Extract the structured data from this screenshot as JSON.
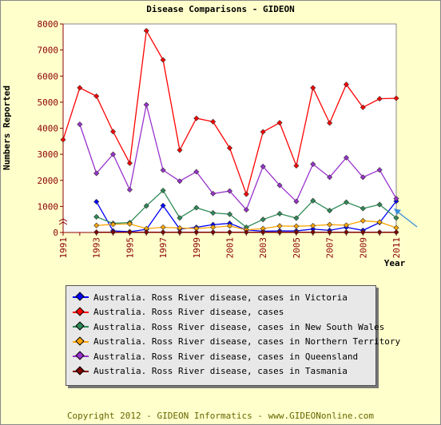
{
  "chart_data": {
    "type": "line",
    "title": "Disease Comparisons - GIDEON",
    "xlabel": "Year",
    "ylabel": "Numbers Reported",
    "xlim": [
      1991,
      2011
    ],
    "ylim": [
      0,
      8000
    ],
    "x_ticks": [
      1991,
      1993,
      1995,
      1997,
      1999,
      2001,
      2003,
      2005,
      2007,
      2009,
      2011
    ],
    "y_ticks": [
      0,
      1000,
      2000,
      3000,
      4000,
      5000,
      6000,
      7000,
      8000
    ],
    "grid": false,
    "legend_position": "bottom",
    "series": [
      {
        "name": "Australia. Ross River disease, cases in Victoria",
        "color": "#0000ff",
        "points": [
          [
            1993,
            1180
          ],
          [
            1994,
            60
          ],
          [
            1995,
            30
          ],
          [
            1996,
            120
          ],
          [
            1997,
            1030
          ],
          [
            1998,
            130
          ],
          [
            1999,
            200
          ],
          [
            2000,
            300
          ],
          [
            2001,
            350
          ],
          [
            2002,
            100
          ],
          [
            2003,
            50
          ],
          [
            2004,
            60
          ],
          [
            2005,
            60
          ],
          [
            2006,
            130
          ],
          [
            2007,
            80
          ],
          [
            2008,
            200
          ],
          [
            2009,
            80
          ],
          [
            2010,
            380
          ],
          [
            2011,
            1200
          ]
        ]
      },
      {
        "name": "Australia. Ross River disease, cases",
        "color": "#ff0000",
        "points": [
          [
            1991,
            3560
          ],
          [
            1992,
            5550
          ],
          [
            1993,
            5230
          ],
          [
            1994,
            3870
          ],
          [
            1995,
            2660
          ],
          [
            1996,
            7740
          ],
          [
            1997,
            6620
          ],
          [
            1998,
            3160
          ],
          [
            1999,
            4380
          ],
          [
            2000,
            4250
          ],
          [
            2001,
            3240
          ],
          [
            2002,
            1470
          ],
          [
            2003,
            3860
          ],
          [
            2004,
            4210
          ],
          [
            2005,
            2560
          ],
          [
            2006,
            5550
          ],
          [
            2007,
            4200
          ],
          [
            2008,
            5680
          ],
          [
            2009,
            4800
          ],
          [
            2010,
            5130
          ],
          [
            2011,
            5150
          ]
        ]
      },
      {
        "name": "Australia. Ross River disease, cases in New South Wales",
        "color": "#2e8b57",
        "points": [
          [
            1993,
            600
          ],
          [
            1994,
            350
          ],
          [
            1995,
            380
          ],
          [
            1996,
            1020
          ],
          [
            1997,
            1610
          ],
          [
            1998,
            560
          ],
          [
            1999,
            950
          ],
          [
            2000,
            750
          ],
          [
            2001,
            700
          ],
          [
            2002,
            200
          ],
          [
            2003,
            500
          ],
          [
            2004,
            720
          ],
          [
            2005,
            550
          ],
          [
            2006,
            1220
          ],
          [
            2007,
            840
          ],
          [
            2008,
            1160
          ],
          [
            2009,
            920
          ],
          [
            2010,
            1070
          ],
          [
            2011,
            560
          ]
        ]
      },
      {
        "name": "Australia. Ross River disease, cases in Northern Territory",
        "color": "#ffa500",
        "points": [
          [
            1993,
            270
          ],
          [
            1994,
            310
          ],
          [
            1995,
            330
          ],
          [
            1996,
            150
          ],
          [
            1997,
            200
          ],
          [
            1998,
            170
          ],
          [
            1999,
            150
          ],
          [
            2000,
            200
          ],
          [
            2001,
            250
          ],
          [
            2002,
            100
          ],
          [
            2003,
            150
          ],
          [
            2004,
            250
          ],
          [
            2005,
            240
          ],
          [
            2006,
            260
          ],
          [
            2007,
            300
          ],
          [
            2008,
            280
          ],
          [
            2009,
            450
          ],
          [
            2010,
            400
          ],
          [
            2011,
            180
          ]
        ]
      },
      {
        "name": "Australia. Ross River disease, cases in Queensland",
        "color": "#9932cc",
        "points": [
          [
            1992,
            4150
          ],
          [
            1993,
            2270
          ],
          [
            1994,
            3000
          ],
          [
            1995,
            1640
          ],
          [
            1996,
            4900
          ],
          [
            1997,
            2390
          ],
          [
            1998,
            1970
          ],
          [
            1999,
            2330
          ],
          [
            2000,
            1490
          ],
          [
            2001,
            1590
          ],
          [
            2002,
            870
          ],
          [
            2003,
            2530
          ],
          [
            2004,
            1810
          ],
          [
            2005,
            1190
          ],
          [
            2006,
            2620
          ],
          [
            2007,
            2120
          ],
          [
            2008,
            2870
          ],
          [
            2009,
            2120
          ],
          [
            2010,
            2400
          ],
          [
            2011,
            1300
          ]
        ]
      },
      {
        "name": "Australia. Ross River disease, cases in Tasmania",
        "color": "#800000",
        "points": [
          [
            1993,
            10
          ],
          [
            1994,
            10
          ],
          [
            1995,
            10
          ],
          [
            1996,
            10
          ],
          [
            1997,
            10
          ],
          [
            1998,
            10
          ],
          [
            1999,
            10
          ],
          [
            2000,
            10
          ],
          [
            2001,
            10
          ],
          [
            2002,
            10
          ],
          [
            2003,
            10
          ],
          [
            2004,
            10
          ],
          [
            2005,
            10
          ],
          [
            2006,
            10
          ],
          [
            2007,
            10
          ],
          [
            2008,
            10
          ],
          [
            2009,
            10
          ],
          [
            2010,
            10
          ],
          [
            2011,
            10
          ]
        ]
      }
    ]
  },
  "footer": "Copyright 2012 - GIDEON Informatics - www.GIDEONonline.com",
  "arrow_color": "#3b8fd9"
}
